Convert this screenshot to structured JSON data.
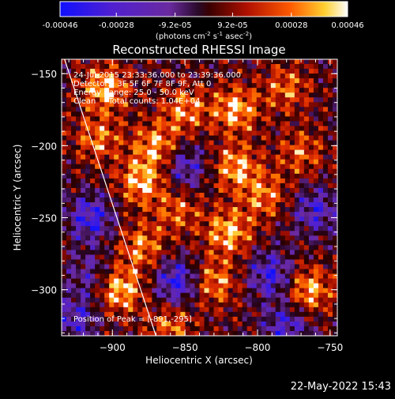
{
  "colorbar": {
    "ticks": [
      {
        "value": -0.00046,
        "label": "-0.00046"
      },
      {
        "value": -0.00028,
        "label": "-0.00028"
      },
      {
        "value": -9.2e-05,
        "label": "-9.2e-05"
      },
      {
        "value": 9.2e-05,
        "label": "9.2e-05"
      },
      {
        "value": 0.00028,
        "label": "0.00028"
      },
      {
        "value": 0.00046,
        "label": "0.00046"
      }
    ],
    "range": [
      -0.00046,
      0.00046
    ],
    "unit_parts": [
      "(photons cm",
      "-2",
      " s",
      "-1",
      " asec",
      "-2",
      ")"
    ]
  },
  "chart_data": {
    "type": "heatmap",
    "title": "Reconstructed RHESSI Image",
    "xlabel": "Heliocentric X (arcsec)",
    "ylabel": "Heliocentric Y (arcsec)",
    "xlim": [
      -935,
      -745
    ],
    "ylim": [
      -332,
      -140
    ],
    "xticks": [
      {
        "value": -900,
        "label": "−900"
      },
      {
        "value": -850,
        "label": "−850"
      },
      {
        "value": -800,
        "label": "−800"
      },
      {
        "value": -750,
        "label": "−750"
      }
    ],
    "yticks": [
      {
        "value": -150,
        "label": "−150"
      },
      {
        "value": -200,
        "label": "−200"
      },
      {
        "value": -250,
        "label": "−250"
      },
      {
        "value": -300,
        "label": "−300"
      }
    ],
    "info_lines": [
      "24-Jul-2015 23:33:36.000 to 23:39:36.000",
      "Detectors: 3F 5F 6F 7F 8F 9F, Att 0",
      "Energy Range: 25.0 - 50.0 keV",
      "Clean     Total counts: 1.04E+04"
    ],
    "peak_text": "Position of Peak = [-891,-295]",
    "peak": [
      -891,
      -295
    ],
    "colormap": "rhessi-signed (blue-purple negative, red-orange-white positive)",
    "sources": [
      {
        "x": -905,
        "y": -160,
        "value": 0.00042
      },
      {
        "x": -880,
        "y": -225,
        "value": 0.0004
      },
      {
        "x": -870,
        "y": -200,
        "value": 0.00036
      },
      {
        "x": -850,
        "y": -175,
        "value": 0.00032
      },
      {
        "x": -815,
        "y": -175,
        "value": 0.0004
      },
      {
        "x": -815,
        "y": -215,
        "value": 0.00038
      },
      {
        "x": -820,
        "y": -260,
        "value": 0.0004
      },
      {
        "x": -830,
        "y": -295,
        "value": 0.00034
      },
      {
        "x": -795,
        "y": -235,
        "value": 0.0003
      },
      {
        "x": -770,
        "y": -205,
        "value": 0.00026
      },
      {
        "x": -765,
        "y": -300,
        "value": 0.0004
      },
      {
        "x": -895,
        "y": -300,
        "value": 0.00044
      },
      {
        "x": -880,
        "y": -270,
        "value": 0.00032
      },
      {
        "x": -860,
        "y": -325,
        "value": 0.00028
      },
      {
        "x": -780,
        "y": -160,
        "value": 0.00028
      },
      {
        "x": -910,
        "y": -195,
        "value": 0.0003
      },
      {
        "x": -855,
        "y": -245,
        "value": 0.00026
      },
      {
        "x": -915,
        "y": -250,
        "value": -0.00036
      },
      {
        "x": -855,
        "y": -295,
        "value": -0.0004
      },
      {
        "x": -850,
        "y": -215,
        "value": -0.0003
      },
      {
        "x": -790,
        "y": -290,
        "value": -0.00036
      },
      {
        "x": -760,
        "y": -245,
        "value": -0.0003
      },
      {
        "x": -780,
        "y": -325,
        "value": -0.0003
      },
      {
        "x": -925,
        "y": -320,
        "value": -0.00028
      },
      {
        "x": -915,
        "y": -290,
        "value": -0.00022
      }
    ],
    "limb_line": [
      [
        -933,
        -140
      ],
      [
        -870,
        -332
      ]
    ]
  },
  "footer": {
    "date": "22-May-2022 15:43"
  }
}
